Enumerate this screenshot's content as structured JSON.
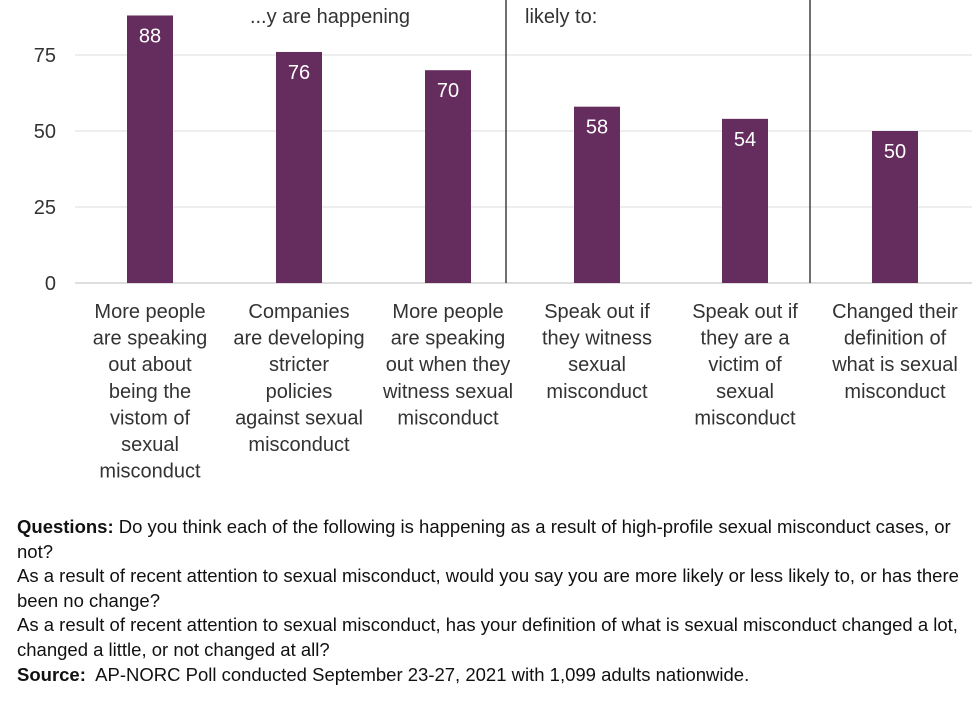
{
  "chart_data": {
    "type": "bar",
    "categories": [
      "More people are speaking out about being the vistom of sexual misconduct",
      "Companies are developing stricter policies against sexual misconduct",
      "More people are speaking out when they witness sexual misconduct",
      "Speak out if they witness sexual misconduct",
      "Speak out if they are a victim of sexual misconduct",
      "Changed their definition of what is sexual misconduct"
    ],
    "category_lines": [
      [
        "More people",
        "are speaking",
        "out about",
        "being the",
        "vistom of",
        "sexual",
        "misconduct"
      ],
      [
        "Companies",
        "are developing",
        "stricter",
        "policies",
        "against sexual",
        "misconduct"
      ],
      [
        "More people",
        "are speaking",
        "out when they",
        "witness sexual",
        "misconduct"
      ],
      [
        "Speak out if",
        "they witness",
        "sexual",
        "misconduct"
      ],
      [
        "Speak out if",
        "they are a",
        "victim of",
        "sexual",
        "misconduct"
      ],
      [
        "Changed their",
        "definition of",
        "what is sexual",
        "misconduct"
      ]
    ],
    "values": [
      88,
      76,
      70,
      58,
      54,
      50
    ],
    "data_labels": [
      "88",
      "76",
      "70",
      "58",
      "54",
      "50"
    ],
    "y_ticks": [
      0,
      25,
      50,
      75
    ],
    "ylim": [
      0,
      100
    ],
    "grid": true,
    "bar_color": "#652d5e",
    "group_headers": [
      {
        "text": "...y are happening",
        "clipped": true
      },
      {
        "text": "likely to:",
        "clipped": true
      },
      {
        "text": "",
        "clipped": true
      }
    ]
  },
  "notes": {
    "questions_label": "Questions:",
    "question_1": "Do you think each of the following is happening as a result of high-profile sexual misconduct cases, or not?",
    "question_2": "As a result of recent attention to sexual misconduct, would you say you are more likely or less likely to, or has there been no change?",
    "question_3": "As a result of recent attention to sexual misconduct, has your definition of what is sexual misconduct changed a lot, changed a little, or not changed at all?",
    "source_label": "Source:",
    "source_text": "AP-NORC Poll conducted September 23-27, 2021 with 1,099 adults nationwide."
  }
}
